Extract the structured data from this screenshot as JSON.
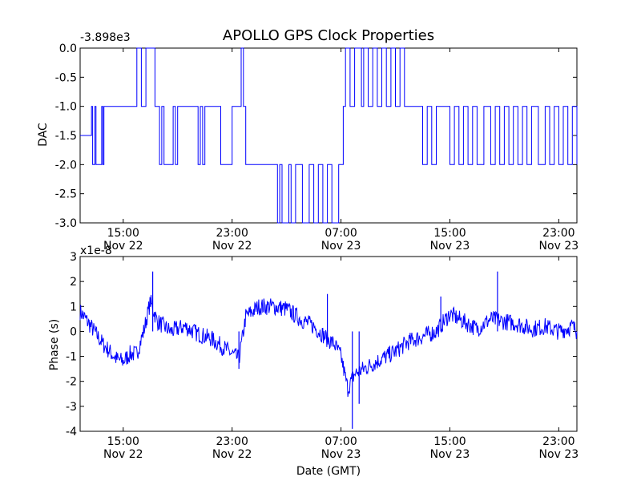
{
  "chart_data": {
    "title": "APOLLO GPS Clock Properties",
    "panels": [
      {
        "type": "line",
        "ylabel": "DAC",
        "offset_label": "-3.898e3",
        "ylim": [
          -3.0,
          0.0
        ],
        "yticks": [
          {
            "value": 0.0,
            "label": "0.0"
          },
          {
            "value": -0.5,
            "label": "-0.5"
          },
          {
            "value": -1.0,
            "label": "-1.0"
          },
          {
            "value": -1.5,
            "label": "-1.5"
          },
          {
            "value": -2.0,
            "label": "-2.0"
          },
          {
            "value": -2.5,
            "label": "-2.5"
          },
          {
            "value": -3.0,
            "label": "-3.0"
          }
        ],
        "xticks": [
          {
            "time": "15:00",
            "date": "Nov 22"
          },
          {
            "time": "23:00",
            "date": "Nov 22"
          },
          {
            "time": "07:00",
            "date": "Nov 23"
          },
          {
            "time": "15:00",
            "date": "Nov 23"
          },
          {
            "time": "23:00",
            "date": "Nov 23"
          }
        ],
        "color": "#0000ff",
        "x_range": [
          "Nov 22 11:50",
          "Nov 24 00:20"
        ],
        "series": {
          "x": [
            "Nov 22 11:50",
            "Nov 22 12:40",
            "Nov 22 12:45",
            "Nov 22 12:55",
            "Nov 22 13:00",
            "Nov 22 13:25",
            "Nov 22 13:30",
            "Nov 22 13:35",
            "Nov 22 13:40",
            "Nov 22 14:20",
            "Nov 22 15:00",
            "Nov 22 16:00",
            "Nov 22 16:20",
            "Nov 22 16:30",
            "Nov 22 16:40",
            "Nov 22 17:20",
            "Nov 22 17:40",
            "Nov 22 17:50",
            "Nov 22 18:00",
            "Nov 22 18:40",
            "Nov 22 18:50",
            "Nov 22 19:00",
            "Nov 22 19:40",
            "Nov 22 20:30",
            "Nov 22 20:40",
            "Nov 22 20:50",
            "Nov 22 21:00",
            "Nov 22 22:00",
            "Nov 22 22:10",
            "Nov 22 23:00",
            "Nov 22 23:20",
            "Nov 22 23:40",
            "Nov 22 23:50",
            "Nov 23 00:00",
            "Nov 23 01:00",
            "Nov 23 02:10",
            "Nov 23 02:20",
            "Nov 23 02:30",
            "Nov 23 02:40",
            "Nov 23 03:10",
            "Nov 23 03:20",
            "Nov 23 03:40",
            "Nov 23 04:10",
            "Nov 23 04:40",
            "Nov 23 05:00",
            "Nov 23 05:20",
            "Nov 23 05:40",
            "Nov 23 06:00",
            "Nov 23 06:20",
            "Nov 23 06:50",
            "Nov 23 07:10",
            "Nov 23 07:20",
            "Nov 23 07:40",
            "Nov 23 08:00",
            "Nov 23 08:30",
            "Nov 23 08:40",
            "Nov 23 09:00",
            "Nov 23 09:20",
            "Nov 23 09:40",
            "Nov 23 10:00",
            "Nov 23 10:20",
            "Nov 23 10:40",
            "Nov 23 11:00",
            "Nov 23 11:20",
            "Nov 23 11:40",
            "Nov 23 12:00",
            "Nov 23 12:30",
            "Nov 23 13:00",
            "Nov 23 13:20",
            "Nov 23 13:40",
            "Nov 23 14:00",
            "Nov 23 15:00",
            "Nov 23 15:20",
            "Nov 23 15:40",
            "Nov 23 16:00",
            "Nov 23 16:20",
            "Nov 23 16:40",
            "Nov 23 17:00",
            "Nov 23 17:30",
            "Nov 23 18:00",
            "Nov 23 18:20",
            "Nov 23 18:40",
            "Nov 23 19:00",
            "Nov 23 19:20",
            "Nov 23 19:40",
            "Nov 23 20:00",
            "Nov 23 20:20",
            "Nov 23 20:40",
            "Nov 23 21:00",
            "Nov 23 21:30",
            "Nov 23 22:00",
            "Nov 23 22:20",
            "Nov 23 22:40",
            "Nov 23 23:00",
            "Nov 23 23:20",
            "Nov 23 23:40",
            "Nov 24 00:00",
            "Nov 24 00:20"
          ],
          "y": [
            -1.5,
            -1,
            -2,
            -1,
            -2,
            -1,
            -2,
            -1,
            -1,
            -1,
            -1,
            0,
            -1,
            -1,
            0,
            -1,
            -2,
            -1,
            -2,
            -1,
            -2,
            -1,
            -1,
            -2,
            -1,
            -2,
            -1,
            -1,
            -2,
            -1,
            -1,
            0,
            -1,
            -2,
            -2,
            -2,
            -3,
            -2,
            -3,
            -2,
            -3,
            -2,
            -3,
            -2,
            -3,
            -2,
            -3,
            -2,
            -3,
            -2,
            -1,
            0,
            -1,
            0,
            -1,
            0,
            -1,
            0,
            -1,
            0,
            -1,
            0,
            -1,
            0,
            -1,
            -1,
            -1,
            -2,
            -1,
            -2,
            -1,
            -2,
            -1,
            -2,
            -1,
            -2,
            -1,
            -2,
            -1,
            -2,
            -1,
            -2,
            -1,
            -2,
            -1,
            -2,
            -1,
            -2,
            -1,
            -2,
            -1,
            -2,
            -1,
            -2,
            -1,
            -2,
            -1,
            -2
          ]
        }
      },
      {
        "type": "line",
        "xlabel": "Date (GMT)",
        "ylabel": "Phase (s)",
        "offset_label": "x1e-8",
        "ylim": [
          -4,
          3
        ],
        "yticks": [
          {
            "value": 3,
            "label": "3"
          },
          {
            "value": 2,
            "label": "2"
          },
          {
            "value": 1,
            "label": "1"
          },
          {
            "value": 0,
            "label": "0"
          },
          {
            "value": -1,
            "label": "-1"
          },
          {
            "value": -2,
            "label": "-2"
          },
          {
            "value": -3,
            "label": "-3"
          },
          {
            "value": -4,
            "label": "-4"
          }
        ],
        "xticks": [
          {
            "time": "15:00",
            "date": "Nov 22"
          },
          {
            "time": "23:00",
            "date": "Nov 22"
          },
          {
            "time": "07:00",
            "date": "Nov 23"
          },
          {
            "time": "15:00",
            "date": "Nov 23"
          },
          {
            "time": "23:00",
            "date": "Nov 23"
          }
        ],
        "color": "#0000ff",
        "x_range": [
          "Nov 22 11:50",
          "Nov 24 00:20"
        ],
        "series": {
          "x": [
            "Nov 22 11:50",
            "Nov 22 12:30",
            "Nov 22 13:30",
            "Nov 22 14:30",
            "Nov 22 15:00",
            "Nov 22 15:30",
            "Nov 22 16:00",
            "Nov 22 16:30",
            "Nov 22 17:00",
            "Nov 22 17:30",
            "Nov 22 18:30",
            "Nov 22 19:30",
            "Nov 22 20:30",
            "Nov 22 21:30",
            "Nov 22 22:30",
            "Nov 22 23:00",
            "Nov 22 23:30",
            "Nov 22 23:45",
            "Nov 23 00:00",
            "Nov 23 01:00",
            "Nov 23 02:00",
            "Nov 23 03:00",
            "Nov 23 04:00",
            "Nov 23 05:00",
            "Nov 23 06:00",
            "Nov 23 06:30",
            "Nov 23 07:00",
            "Nov 23 07:30",
            "Nov 23 08:00",
            "Nov 23 09:00",
            "Nov 23 10:00",
            "Nov 23 11:00",
            "Nov 23 12:00",
            "Nov 23 13:00",
            "Nov 23 14:00",
            "Nov 23 15:00",
            "Nov 23 16:00",
            "Nov 23 17:00",
            "Nov 23 18:00",
            "Nov 23 19:00",
            "Nov 23 20:00",
            "Nov 23 21:00",
            "Nov 23 22:00",
            "Nov 23 23:00",
            "Nov 23 23:30",
            "Nov 24 00:00",
            "Nov 24 00:20"
          ],
          "y": [
            0.8,
            0.3,
            -0.5,
            -1.1,
            -1.2,
            -0.9,
            -0.9,
            0.0,
            1.2,
            0.4,
            0.0,
            0.2,
            -0.1,
            -0.3,
            -0.7,
            -0.9,
            -1.1,
            -0.3,
            0.6,
            1.0,
            1.0,
            0.9,
            0.5,
            0.2,
            -0.3,
            -0.5,
            -1.0,
            -2.3,
            -1.7,
            -1.4,
            -1.1,
            -0.8,
            -0.4,
            -0.2,
            0.0,
            0.7,
            0.4,
            0.1,
            0.5,
            0.4,
            0.3,
            0.1,
            0.2,
            0.0,
            0.1,
            0.2,
            0.0
          ]
        },
        "spikes": [
          {
            "x": "Nov 22 17:10",
            "y": 2.4
          },
          {
            "x": "Nov 22 23:30",
            "y": -1.5
          },
          {
            "x": "Nov 23 06:00",
            "y": 1.5
          },
          {
            "x": "Nov 23 07:50",
            "y": -3.9
          },
          {
            "x": "Nov 23 08:20",
            "y": -2.9
          },
          {
            "x": "Nov 23 14:20",
            "y": 1.4
          },
          {
            "x": "Nov 23 18:30",
            "y": 2.4
          }
        ]
      }
    ]
  }
}
